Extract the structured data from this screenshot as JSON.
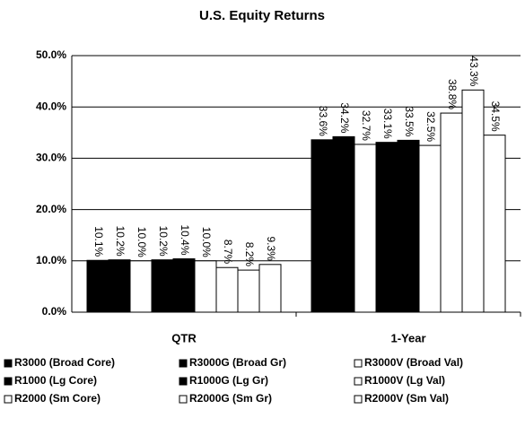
{
  "chart_data": {
    "type": "bar",
    "title": "U.S. Equity Returns",
    "categories": [
      "QTR",
      "1-Year"
    ],
    "series": [
      {
        "name": "R3000 (Broad Core)",
        "color": "#000000",
        "values": [
          10.1,
          33.6
        ],
        "value_labels": [
          "10.1%",
          "33.6%"
        ]
      },
      {
        "name": "R1000 (Lg Core)",
        "color": "#000000",
        "values": [
          10.2,
          34.2
        ],
        "value_labels": [
          "10.2%",
          "34.2%"
        ]
      },
      {
        "name": "R2000 (Sm Core)",
        "color": "#ffffff",
        "values": [
          10.0,
          32.7
        ],
        "value_labels": [
          "10.0%",
          "32.7%"
        ]
      },
      {
        "name": "R3000G (Broad Gr)",
        "color": "#000000",
        "values": [
          10.2,
          33.1
        ],
        "value_labels": [
          "10.2%",
          "33.1%"
        ]
      },
      {
        "name": "R1000G (Lg Gr)",
        "color": "#000000",
        "values": [
          10.4,
          33.5
        ],
        "value_labels": [
          "10.4%",
          "33.5%"
        ]
      },
      {
        "name": "R2000G (Sm Gr)",
        "color": "#ffffff",
        "values": [
          10.0,
          32.5
        ],
        "value_labels": [
          "10.0%",
          "32.5%"
        ]
      },
      {
        "name": "R3000V (Broad Val)",
        "color": "#ffffff",
        "values": [
          8.7,
          38.8
        ],
        "value_labels": [
          "8.7%",
          "38.8%"
        ]
      },
      {
        "name": "R1000V (Lg Val)",
        "color": "#ffffff",
        "values": [
          8.2,
          43.3
        ],
        "value_labels": [
          "8.2%",
          "43.3%"
        ]
      },
      {
        "name": "R2000V (Sm Val)",
        "color": "#ffffff",
        "values": [
          9.3,
          34.5
        ],
        "value_labels": [
          "9.3%",
          "34.5%"
        ]
      }
    ],
    "ylim": [
      0,
      50
    ],
    "yticks": [
      {
        "value": 0,
        "label": "0.0%"
      },
      {
        "value": 10,
        "label": "10.0%"
      },
      {
        "value": 20,
        "label": "20.0%"
      },
      {
        "value": 30,
        "label": "30.0%"
      },
      {
        "value": 40,
        "label": "40.0%"
      },
      {
        "value": 50,
        "label": "50.0%"
      }
    ],
    "grid": true,
    "legend": "bottom"
  }
}
